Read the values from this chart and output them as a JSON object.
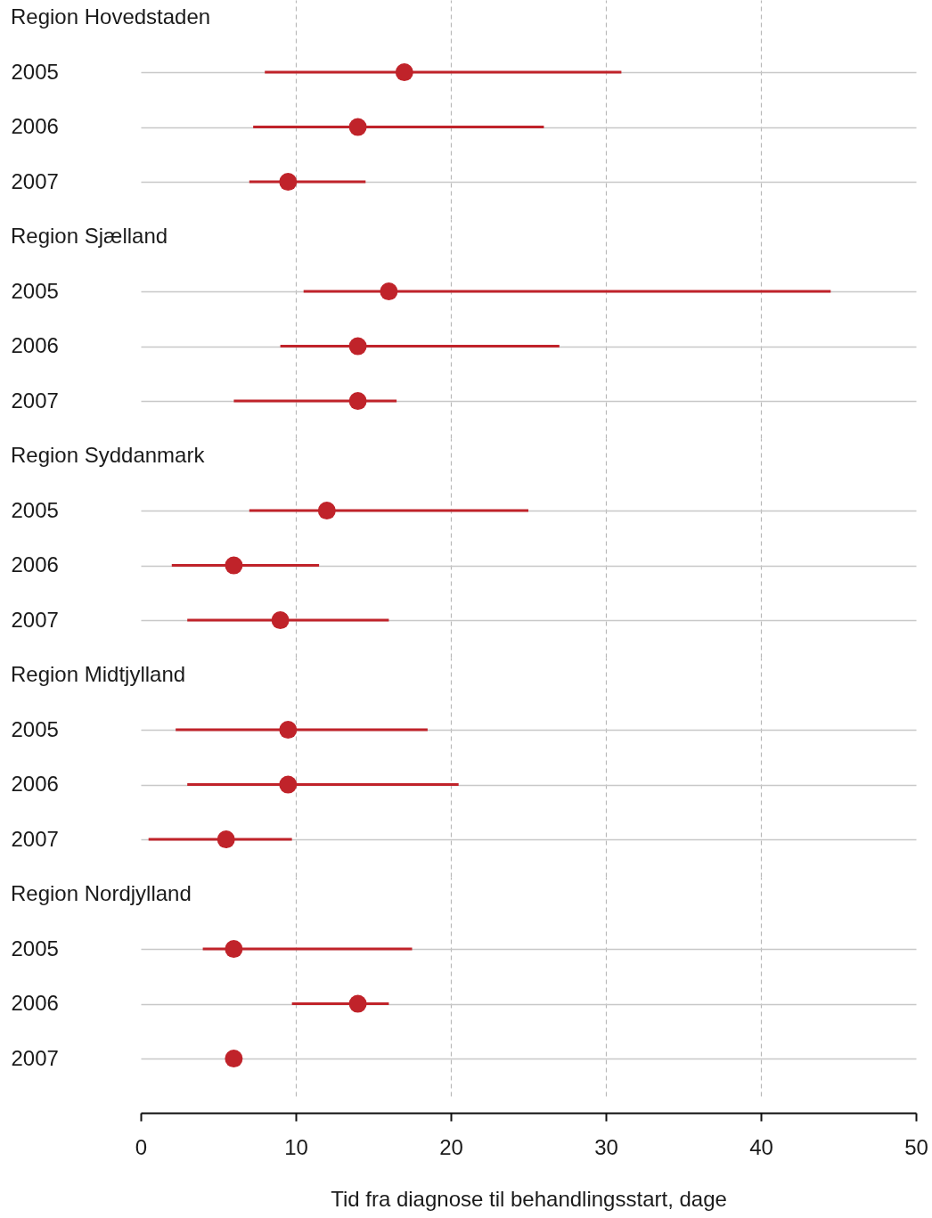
{
  "chart_data": [
    {
      "type": "scatter",
      "orientation": "horizontal",
      "title": "Region Hovedstaden",
      "categories": [
        "2005",
        "2006",
        "2007"
      ],
      "values": [
        17,
        14,
        9.5
      ],
      "errors": [
        [
          8,
          31
        ],
        [
          7.25,
          26
        ],
        [
          7,
          14.5
        ]
      ],
      "color": "#c0232a",
      "marker": "circle",
      "xlim": [
        0,
        50
      ],
      "xticks": [
        0,
        10,
        20,
        30,
        40,
        50
      ],
      "grid": true,
      "tick_labels": "y"
    },
    {
      "type": "scatter",
      "orientation": "horizontal",
      "title": "Region Sjælland",
      "categories": [
        "2005",
        "2006",
        "2007"
      ],
      "values": [
        16,
        14,
        14
      ],
      "errors": [
        [
          10.5,
          44.5
        ],
        [
          9,
          27
        ],
        [
          6,
          16.5
        ]
      ],
      "color": "#c0232a",
      "marker": "circle",
      "xlim": [
        0,
        50
      ],
      "xticks": [
        0,
        10,
        20,
        30,
        40,
        50
      ],
      "grid": true,
      "tick_labels": "y"
    },
    {
      "type": "scatter",
      "orientation": "horizontal",
      "title": "Region Syddanmark",
      "categories": [
        "2005",
        "2006",
        "2007"
      ],
      "values": [
        12,
        6,
        9
      ],
      "errors": [
        [
          7,
          25
        ],
        [
          2,
          11.5
        ],
        [
          3,
          16
        ]
      ],
      "color": "#c0232a",
      "marker": "circle",
      "xlim": [
        0,
        50
      ],
      "xticks": [
        0,
        10,
        20,
        30,
        40,
        50
      ],
      "grid": true,
      "tick_labels": "y"
    },
    {
      "type": "scatter",
      "orientation": "horizontal",
      "title": "Region Midtjylland",
      "categories": [
        "2005",
        "2006",
        "2007"
      ],
      "values": [
        9.5,
        9.5,
        5.5
      ],
      "errors": [
        [
          2.25,
          18.5
        ],
        [
          3,
          20.5
        ],
        [
          0.5,
          9.75
        ]
      ],
      "color": "#c0232a",
      "marker": "circle",
      "xlim": [
        0,
        50
      ],
      "xticks": [
        0,
        10,
        20,
        30,
        40,
        50
      ],
      "grid": true,
      "tick_labels": "y"
    },
    {
      "type": "scatter",
      "orientation": "horizontal",
      "title": "Region Nordjylland",
      "categories": [
        "2005",
        "2006",
        "2007"
      ],
      "values": [
        6,
        14,
        6
      ],
      "errors": [
        [
          4,
          17.5
        ],
        [
          9.75,
          16
        ],
        null
      ],
      "color": "#c0232a",
      "marker": "circle",
      "xlim": [
        0,
        50
      ],
      "xticks": [
        0,
        10,
        20,
        30,
        40,
        50
      ],
      "grid": true,
      "xlabel": "Tid fra diagnose til behandlingsstart, dage"
    }
  ]
}
